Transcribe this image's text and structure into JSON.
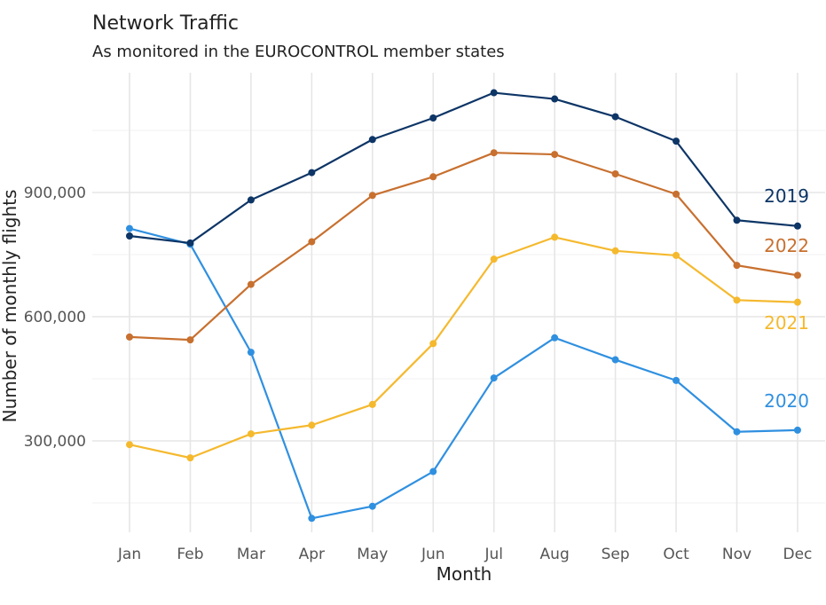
{
  "chart_data": {
    "type": "line",
    "title": "Network Traffic",
    "subtitle": "As monitored in the EUROCONTROL member states",
    "xlabel": "Month",
    "ylabel": "Number of monthly flights",
    "categories": [
      "Jan",
      "Feb",
      "Mar",
      "Apr",
      "May",
      "Jun",
      "Jul",
      "Aug",
      "Sep",
      "Oct",
      "Nov",
      "Dec"
    ],
    "ylim": [
      80000,
      1170000
    ],
    "yticks": [
      300000,
      600000,
      900000
    ],
    "ytick_labels": [
      "300,000",
      "600,000",
      "900,000"
    ],
    "grid": true,
    "legend": "direct-labels-right",
    "series": [
      {
        "name": "2019",
        "color": "#0d3566",
        "values": [
          795000,
          778000,
          882000,
          948000,
          1028000,
          1080000,
          1141000,
          1126000,
          1083000,
          1024000,
          833000,
          819000
        ]
      },
      {
        "name": "2022",
        "color": "#c8702f",
        "values": [
          551000,
          544000,
          678000,
          781000,
          893000,
          938000,
          996000,
          992000,
          945000,
          896000,
          724000,
          700000
        ]
      },
      {
        "name": "2021",
        "color": "#f5b92e",
        "values": [
          291000,
          259000,
          317000,
          338000,
          388000,
          535000,
          739000,
          792000,
          759000,
          748000,
          640000,
          635000
        ]
      },
      {
        "name": "2020",
        "color": "#3090e0",
        "values": [
          813000,
          775000,
          514000,
          113000,
          142000,
          226000,
          452000,
          549000,
          496000,
          446000,
          322000,
          326000
        ]
      }
    ]
  }
}
